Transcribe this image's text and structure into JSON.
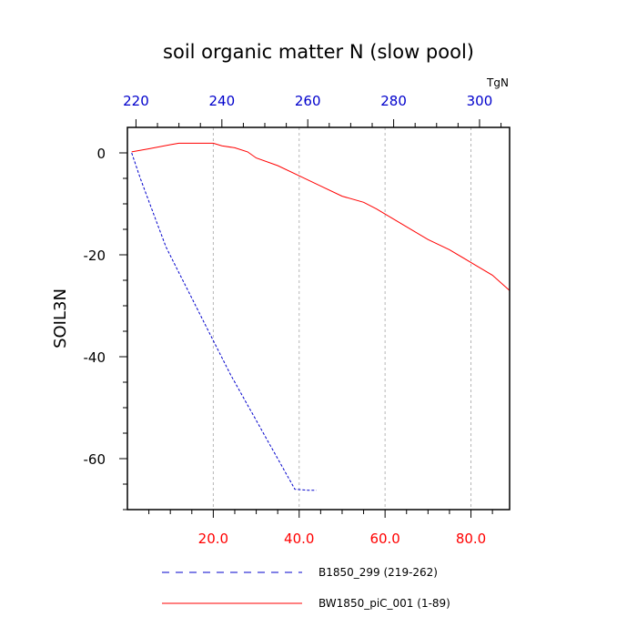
{
  "chart_data": {
    "type": "line",
    "title": "soil organic matter N (slow pool)",
    "ylabel": "SOIL3N",
    "top_axis_unit": "TgN",
    "xlim": [
      0,
      89
    ],
    "ylim": [
      -70,
      5
    ],
    "top_xlim": [
      218,
      307
    ],
    "bottom_ticks": [
      20,
      40,
      60,
      80
    ],
    "bottom_tick_labels": [
      "20.0",
      "40.0",
      "60.0",
      "80.0"
    ],
    "bottom_tick_color": "#ff0000",
    "top_ticks": [
      220,
      240,
      260,
      280,
      300
    ],
    "top_tick_labels": [
      "220",
      "240",
      "260",
      "280",
      "300"
    ],
    "top_tick_color": "#0000cc",
    "y_ticks": [
      0,
      -20,
      -40,
      -60
    ],
    "y_tick_labels": [
      "0",
      "-20",
      "-40",
      "-60"
    ],
    "grid": "vertical dashed gray at bottom major ticks",
    "legend_position": "bottom",
    "series": [
      {
        "name": "B1850_299 (219-262)",
        "color": "#0000cc",
        "style": "dashed",
        "axis": "top",
        "x": [
          219,
          221,
          223,
          225,
          227,
          230,
          233,
          236,
          239,
          242,
          245,
          248,
          251,
          254,
          257,
          260,
          262
        ],
        "y": [
          0,
          -5,
          -9.5,
          -14,
          -18.5,
          -23.5,
          -28.5,
          -33.5,
          -38.5,
          -43.5,
          -48,
          -52.5,
          -57,
          -61.5,
          -66,
          -66.2,
          -66.2
        ]
      },
      {
        "name": "BW1850_piC_001 (1-89)",
        "color": "#ff0000",
        "style": "solid",
        "axis": "bottom",
        "x": [
          1,
          5,
          10,
          12,
          15,
          18,
          20,
          22,
          25,
          28,
          30,
          35,
          40,
          45,
          50,
          55,
          58,
          60,
          65,
          70,
          75,
          80,
          85,
          89
        ],
        "y": [
          0.2,
          0.8,
          1.6,
          1.9,
          1.9,
          1.9,
          1.9,
          1.4,
          1.0,
          0.2,
          -1.0,
          -2.5,
          -4.5,
          -6.5,
          -8.5,
          -9.7,
          -11,
          -12,
          -14.5,
          -17,
          -19,
          -21.5,
          -24,
          -27
        ]
      }
    ]
  }
}
